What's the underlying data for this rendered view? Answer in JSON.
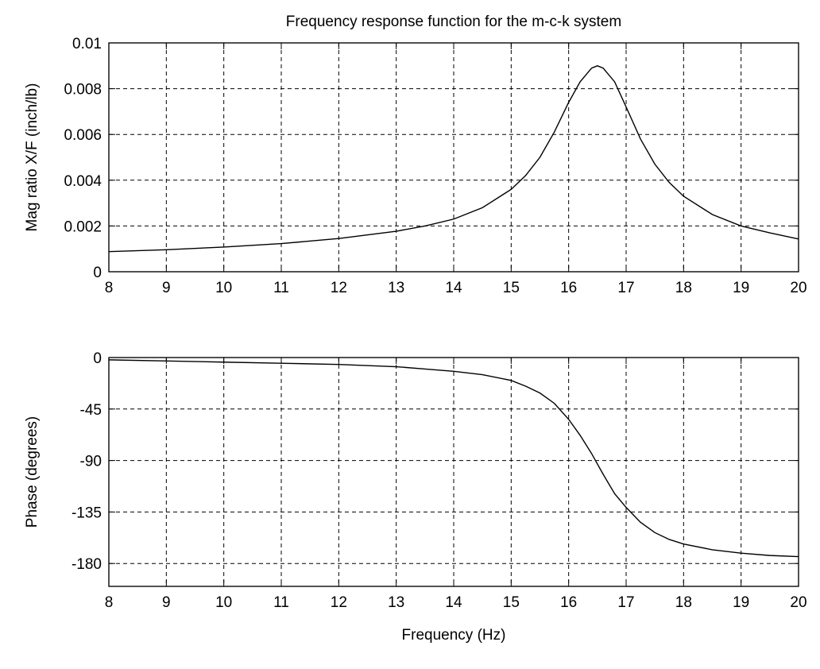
{
  "chart_data": [
    {
      "type": "line",
      "title": "Frequency response function for the m-c-k system",
      "xlabel": "",
      "ylabel": "Mag ratio X/F (inch/lb)",
      "xlim": [
        8,
        20
      ],
      "ylim": [
        0,
        0.01
      ],
      "xticks": [
        8,
        9,
        10,
        11,
        12,
        13,
        14,
        15,
        16,
        17,
        18,
        19,
        20
      ],
      "xtick_labels": [
        "8",
        "9",
        "10",
        "11",
        "12",
        "13",
        "14",
        "15",
        "16",
        "17",
        "18",
        "19",
        "20"
      ],
      "yticks": [
        0,
        0.002,
        0.004,
        0.006,
        0.008,
        0.01
      ],
      "ytick_labels": [
        "0",
        "0.002",
        "0.004",
        "0.006",
        "0.008",
        "0.01"
      ],
      "grid": true,
      "series": [
        {
          "color": "#000000",
          "x": [
            8,
            9,
            10,
            11,
            12,
            13,
            13.5,
            14,
            14.5,
            15,
            15.25,
            15.5,
            15.75,
            16,
            16.2,
            16.4,
            16.5,
            16.6,
            16.8,
            17,
            17.25,
            17.5,
            17.75,
            18,
            18.5,
            19,
            19.5,
            20
          ],
          "y": [
            0.00088,
            0.00096,
            0.00108,
            0.00123,
            0.00145,
            0.00177,
            0.002,
            0.0023,
            0.0028,
            0.0036,
            0.0042,
            0.005,
            0.0061,
            0.0074,
            0.0083,
            0.0089,
            0.009,
            0.0089,
            0.0083,
            0.0072,
            0.0058,
            0.0047,
            0.0039,
            0.0033,
            0.0025,
            0.002,
            0.0017,
            0.00143
          ]
        }
      ]
    },
    {
      "type": "line",
      "title": "",
      "xlabel": "Frequency (Hz)",
      "ylabel": "Phase (degrees)",
      "xlim": [
        8,
        20
      ],
      "ylim": [
        -200,
        0
      ],
      "xticks": [
        8,
        9,
        10,
        11,
        12,
        13,
        14,
        15,
        16,
        17,
        18,
        19,
        20
      ],
      "xtick_labels": [
        "8",
        "9",
        "10",
        "11",
        "12",
        "13",
        "14",
        "15",
        "16",
        "17",
        "18",
        "19",
        "20"
      ],
      "yticks": [
        0,
        -45,
        -90,
        -135,
        -180
      ],
      "ytick_labels": [
        "0",
        "-45",
        "-90",
        "-135",
        "-180"
      ],
      "grid": true,
      "series": [
        {
          "color": "#000000",
          "x": [
            8,
            9,
            10,
            11,
            12,
            13,
            13.5,
            14,
            14.5,
            15,
            15.25,
            15.5,
            15.75,
            16,
            16.2,
            16.4,
            16.5,
            16.6,
            16.8,
            17,
            17.25,
            17.5,
            17.75,
            18,
            18.5,
            19,
            19.5,
            20
          ],
          "y": [
            -2,
            -3,
            -4,
            -5,
            -6,
            -8,
            -10,
            -12,
            -15,
            -20,
            -25,
            -31,
            -40,
            -54,
            -68,
            -84,
            -93,
            -102,
            -119,
            -131,
            -144,
            -153,
            -159,
            -163,
            -168,
            -171,
            -173,
            -174
          ]
        }
      ]
    }
  ]
}
